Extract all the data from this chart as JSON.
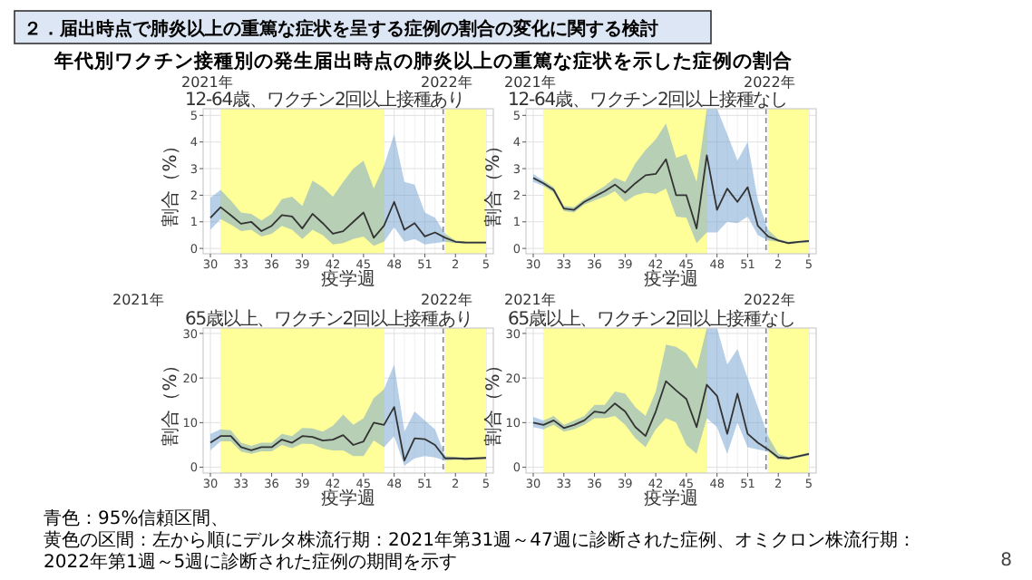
{
  "chart_data": [
    {
      "type": "line",
      "title": "12-64歳、ワクチン2回以上接種あり",
      "xlabel": "疫学週",
      "ylabel": "割合（%）",
      "annotations": [
        "２．届出時点で肺炎以上の重篤な症状を呈する症例の割合の変化に関する検討",
        "年代別ワクチン接種別の発生届出時点の肺炎以上の重篤な症状を示した症例の割合",
        "2021年",
        "2022年",
        "青色：95%信頼区間、",
        "黄色の区間：左から順にデルタ株流行期：2021年第31週～47週に診断された症例、オミクロン株流行期：2022年第1週～5週に診断された症例の期間を示す",
        "8"
      ],
      "categories": [
        "30",
        null,
        null,
        "33",
        null,
        null,
        "36",
        null,
        null,
        "39",
        null,
        null,
        "42",
        null,
        null,
        "45",
        null,
        null,
        "48",
        null,
        null,
        "51",
        null,
        null,
        "2",
        null,
        null,
        "5"
      ],
      "series": [
        {
          "color": "#333333",
          "values": [
            1.15,
            1.55,
            1.25,
            0.93,
            1.0,
            0.65,
            0.85,
            1.25,
            1.2,
            0.75,
            1.3,
            0.95,
            0.55,
            0.65,
            1.0,
            1.35,
            0.4,
            0.85,
            1.75,
            0.7,
            0.95,
            0.45,
            0.6,
            0.4,
            0.25,
            0.22,
            0.22,
            0.22
          ],
          "lower": [
            0.7,
            1.1,
            0.9,
            0.65,
            0.7,
            0.45,
            0.55,
            0.85,
            0.7,
            0.35,
            0.7,
            0.5,
            0.15,
            0.2,
            0.35,
            0.45,
            0.1,
            0.25,
            0.8,
            0.25,
            0.35,
            0.15,
            0.2,
            0.25,
            0.2,
            0.18,
            0.18,
            0.18
          ],
          "upper": [
            1.9,
            2.2,
            1.8,
            1.35,
            1.3,
            1.05,
            1.3,
            1.85,
            1.95,
            1.6,
            2.55,
            2.3,
            1.95,
            2.5,
            3.0,
            3.3,
            2.25,
            3.1,
            4.3,
            2.5,
            2.4,
            1.35,
            1.15,
            0.55,
            0.3,
            0.25,
            0.25,
            0.25
          ]
        }
      ],
      "ylim": [
        -0.2,
        5.25
      ],
      "yticks": [
        0,
        1,
        2,
        3,
        4,
        5
      ],
      "grid": true
    },
    {
      "type": "line",
      "title": "12-64歳、ワクチン2回以上接種なし",
      "xlabel": "疫学週",
      "ylabel": "割合（%）",
      "annotations": [
        "2021年",
        "2022年"
      ],
      "categories": [
        "30",
        null,
        null,
        "33",
        null,
        null,
        "36",
        null,
        null,
        "39",
        null,
        null,
        "42",
        null,
        null,
        "45",
        null,
        null,
        "48",
        null,
        null,
        "51",
        null,
        null,
        "2",
        null,
        null,
        "5"
      ],
      "series": [
        {
          "color": "#333333",
          "values": [
            2.65,
            2.45,
            2.2,
            1.5,
            1.45,
            1.75,
            1.95,
            2.15,
            2.4,
            2.1,
            2.45,
            2.75,
            2.8,
            3.35,
            2.0,
            2.0,
            0.75,
            3.5,
            1.45,
            2.25,
            1.75,
            2.3,
            0.85,
            0.45,
            0.3,
            0.2,
            0.25,
            0.28
          ],
          "lower": [
            2.5,
            2.35,
            2.1,
            1.4,
            1.35,
            1.65,
            1.8,
            1.95,
            2.15,
            1.75,
            2.0,
            2.1,
            2.05,
            2.25,
            1.2,
            1.15,
            0.2,
            0.6,
            0.6,
            1.0,
            0.95,
            1.2,
            0.5,
            0.3,
            0.25,
            0.17,
            0.2,
            0.22
          ],
          "upper": [
            2.8,
            2.55,
            2.3,
            1.6,
            1.55,
            1.85,
            2.1,
            2.35,
            2.65,
            2.5,
            3.2,
            3.7,
            4.1,
            4.7,
            3.4,
            3.55,
            2.5,
            5.25,
            5.25,
            4.3,
            3.3,
            4.0,
            1.8,
            0.7,
            0.35,
            0.25,
            0.28,
            0.3
          ]
        }
      ],
      "ylim": [
        -0.2,
        5.25
      ],
      "yticks": [
        0,
        1,
        2,
        3,
        4,
        5
      ],
      "grid": true
    },
    {
      "type": "line",
      "title": "65歳以上、ワクチン2回以上接種あり",
      "xlabel": "疫学週",
      "ylabel": "割合（%）",
      "annotations": [
        "2021年",
        "2022年"
      ],
      "categories": [
        "30",
        null,
        null,
        "33",
        null,
        null,
        "36",
        null,
        null,
        "39",
        null,
        null,
        "42",
        null,
        null,
        "45",
        null,
        null,
        "48",
        null,
        null,
        "51",
        null,
        null,
        "2",
        null,
        null,
        "5"
      ],
      "series": [
        {
          "color": "#333333",
          "values": [
            5.5,
            7,
            7,
            4.5,
            3.8,
            4.5,
            4.5,
            6.2,
            5.5,
            7,
            6.8,
            6,
            6.2,
            7.2,
            5,
            5.8,
            10,
            9.5,
            13.5,
            1.5,
            6.5,
            6.3,
            5,
            2,
            2,
            1.9,
            2,
            2.1
          ],
          "lower": [
            3.8,
            5.8,
            5.8,
            3.5,
            3.0,
            3.6,
            3.6,
            5,
            4.3,
            5.3,
            5.2,
            4.2,
            3.8,
            3.8,
            2.5,
            2.5,
            6,
            4.5,
            7,
            0.3,
            2,
            2.5,
            2.2,
            1.5,
            1.7,
            1.6,
            1.7,
            1.9
          ],
          "upper": [
            7.5,
            8.5,
            8.3,
            5.5,
            4.8,
            5.5,
            5.5,
            7.5,
            7,
            8.8,
            8.7,
            8,
            9.3,
            11.8,
            9.5,
            11,
            15.5,
            17.5,
            23,
            8,
            12.5,
            10.5,
            8.5,
            2.5,
            2.3,
            2.2,
            2.2,
            2.3
          ]
        }
      ],
      "ylim": [
        -1.3,
        31.2
      ],
      "yticks": [
        0,
        10,
        20,
        30
      ],
      "grid": true
    },
    {
      "type": "line",
      "title": "65歳以上、ワクチン2回以上接種なし",
      "xlabel": "疫学週",
      "ylabel": "割合（%）",
      "annotations": [
        "2021年",
        "2022年"
      ],
      "categories": [
        "30",
        null,
        null,
        "33",
        null,
        null,
        "36",
        null,
        null,
        "39",
        null,
        null,
        "42",
        null,
        null,
        "45",
        null,
        null,
        "48",
        null,
        null,
        "51",
        null,
        null,
        "2",
        null,
        null,
        "5"
      ],
      "series": [
        {
          "color": "#333333",
          "values": [
            10,
            9.5,
            10.5,
            8.8,
            9.5,
            10.5,
            12.5,
            12.2,
            14.3,
            12.5,
            9,
            7,
            12.5,
            19.3,
            17.2,
            15.3,
            9,
            18.5,
            16,
            7.5,
            16.5,
            7.5,
            5.5,
            4,
            2.2,
            2,
            2.5,
            3
          ],
          "lower": [
            9,
            8.5,
            9.5,
            8,
            8.5,
            9.5,
            11,
            11,
            11.5,
            9.5,
            6.5,
            4.5,
            8.5,
            11,
            10,
            5,
            3,
            11,
            9,
            3,
            10,
            4.5,
            4,
            3.5,
            1.7,
            1.7,
            2.2,
            2.6
          ],
          "upper": [
            11.3,
            10.5,
            11.5,
            9.5,
            10.5,
            11.5,
            14,
            14,
            17,
            16.5,
            13.5,
            11.5,
            17,
            27.5,
            27,
            25.5,
            22,
            31.2,
            31.2,
            23,
            26.5,
            20,
            13.5,
            7,
            3,
            2.3,
            2.7,
            3.3
          ]
        }
      ],
      "ylim": [
        -1.3,
        31.2
      ],
      "yticks": [
        0,
        10,
        20,
        30
      ],
      "grid": true
    }
  ]
}
